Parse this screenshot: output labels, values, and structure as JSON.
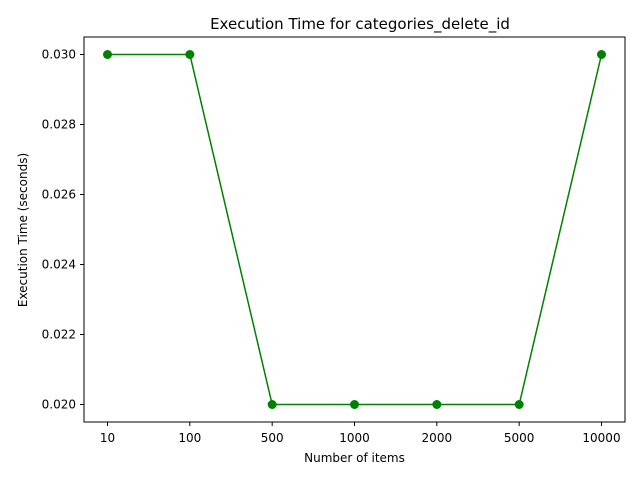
{
  "chart_data": {
    "type": "line",
    "title": "Execution Time for categories_delete_id",
    "xlabel": "Number of items",
    "ylabel": "Execution Time (seconds)",
    "categories": [
      "10",
      "100",
      "500",
      "1000",
      "2000",
      "5000",
      "10000"
    ],
    "series": [
      {
        "values": [
          0.03,
          0.03,
          0.02,
          0.02,
          0.02,
          0.02,
          0.03
        ],
        "color": "#008000",
        "marker": "circle"
      }
    ],
    "ylim": [
      0.0195,
      0.0305
    ],
    "yticks": [
      "0.020",
      "0.022",
      "0.024",
      "0.026",
      "0.028",
      "0.030"
    ],
    "grid": false,
    "legend": false
  }
}
